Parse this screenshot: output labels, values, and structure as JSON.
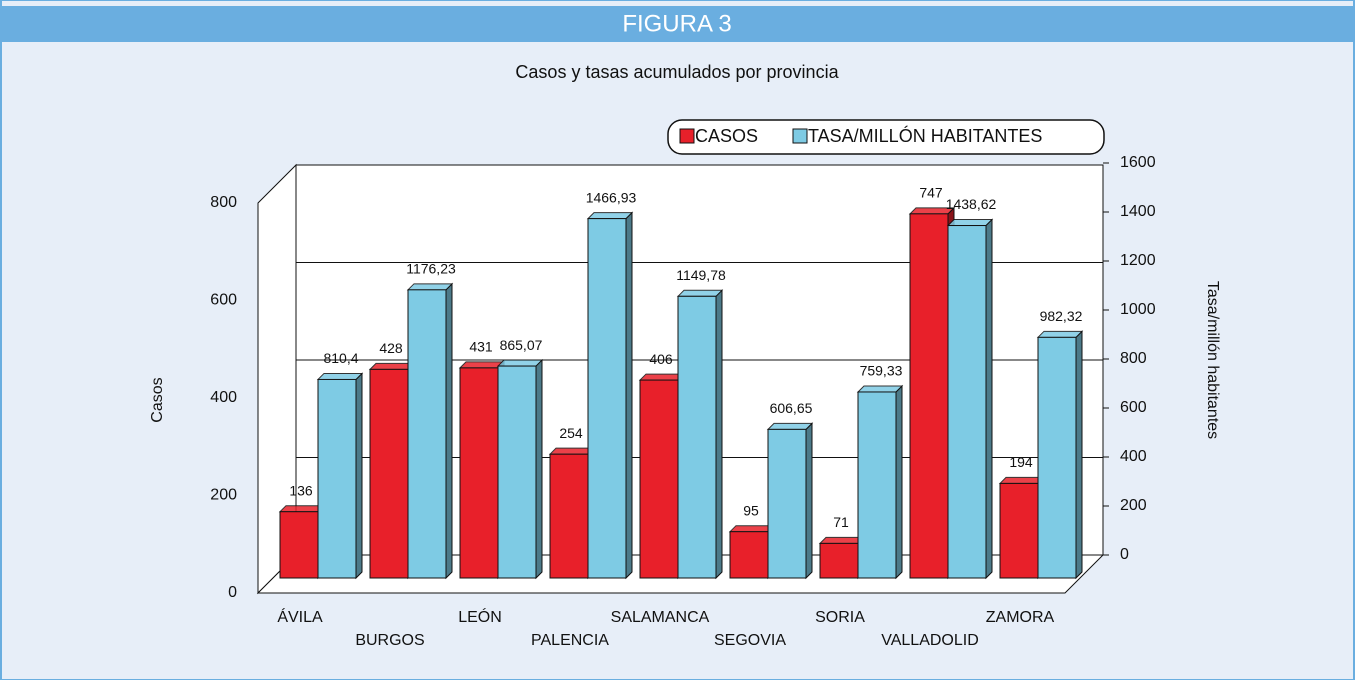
{
  "header": "FIGURA 3",
  "chart_data": {
    "type": "bar3d",
    "title": "Casos y tasas acumulados por provincia",
    "ylabel": "Casos",
    "y2label": "Tasa/millón habitantes",
    "categories": [
      "ÁVILA",
      "BURGOS",
      "LEÓN",
      "PALENCIA",
      "SALAMANCA",
      "SEGOVIA",
      "SORIA",
      "VALLADOLID",
      "ZAMORA"
    ],
    "series": [
      {
        "name": "CASOS",
        "color": "#e8202a",
        "values": [
          136,
          428,
          431,
          254,
          406,
          95,
          71,
          747,
          194
        ]
      },
      {
        "name": "TASA/MILLÓN HABITANTES",
        "color": "#7ecbe4",
        "axis": "y2",
        "values": [
          810.4,
          1176.23,
          865.07,
          1466.93,
          1149.78,
          606.65,
          759.33,
          1438.62,
          982.32
        ],
        "value_labels": [
          "810,4",
          "1176,23",
          "865,07",
          "1466,93",
          "1149,78",
          "606,65",
          "759,33",
          "1438,62",
          "982,32"
        ]
      }
    ],
    "ylim": [
      0,
      800
    ],
    "yticks": [
      0,
      200,
      400,
      600,
      800
    ],
    "y2lim": [
      0,
      1600
    ],
    "y2ticks": [
      0,
      200,
      400,
      600,
      800,
      1000,
      1200,
      1400,
      1600
    ],
    "grid": true
  }
}
